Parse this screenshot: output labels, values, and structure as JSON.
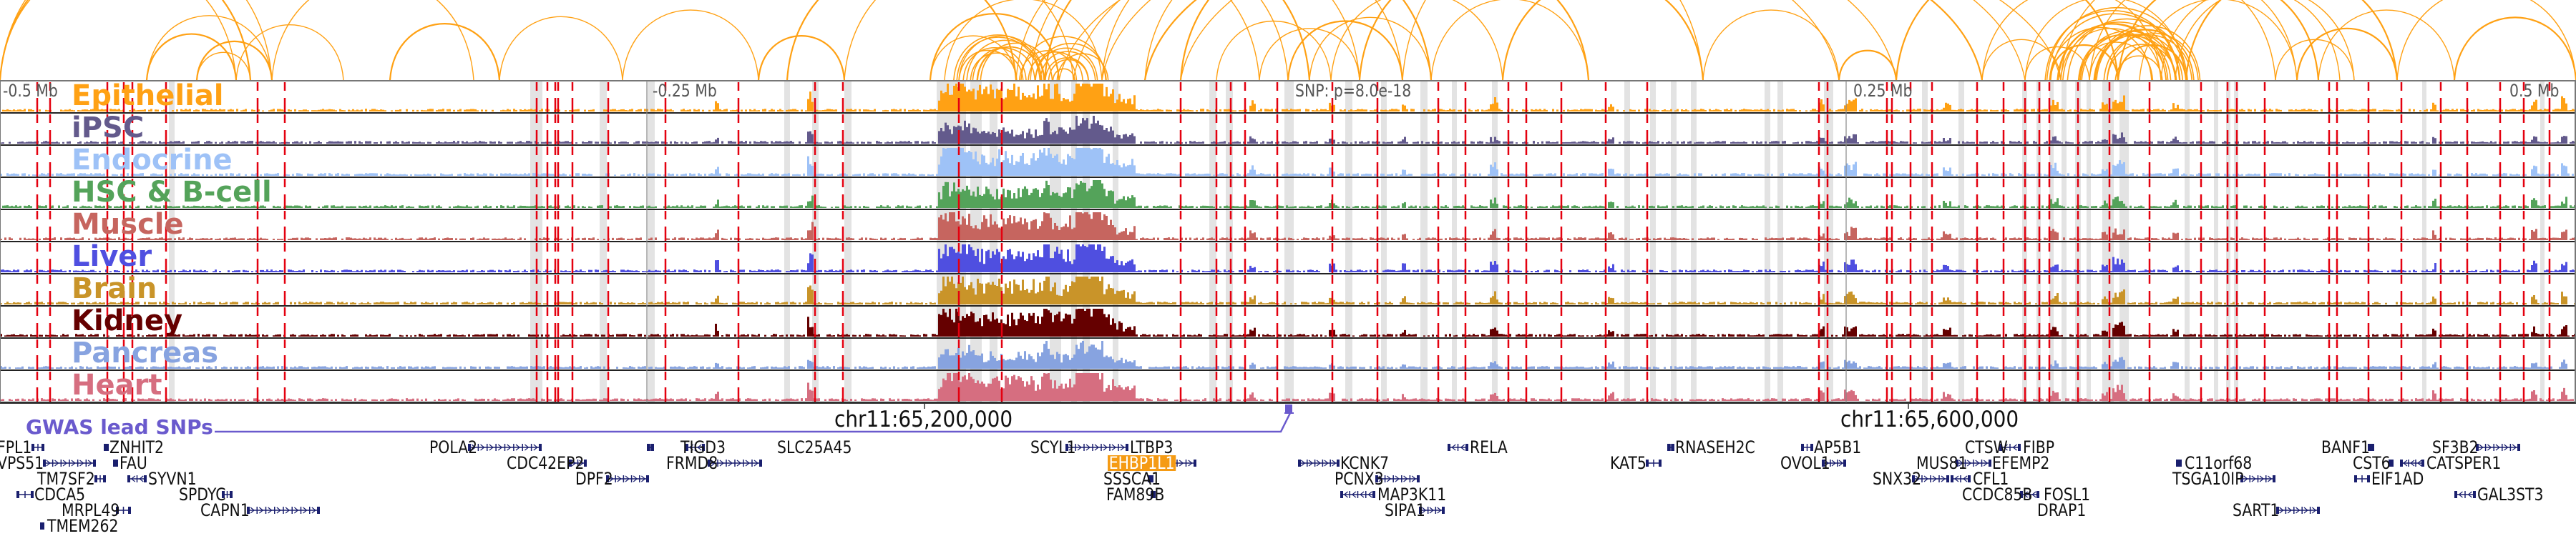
{
  "browser": {
    "title": "Genome browser region view",
    "arc_color": "#ffa114",
    "snp_marker_color": "#e4000f",
    "highlight_band_color": "#e3e3e3"
  },
  "axis": {
    "ticks": [
      {
        "label": "-0.5 Mb",
        "offset_mb": -0.5
      },
      {
        "label": "-0.25 Mb",
        "offset_mb": -0.25
      },
      {
        "label": "0.25 Mb",
        "offset_mb": 0.25
      },
      {
        "label": "0.5 Mb",
        "offset_mb": 0.5
      }
    ],
    "snp_label": "SNP: p=8.0e-18"
  },
  "tracks": [
    {
      "label": "Epithelial",
      "color": "#ffa114"
    },
    {
      "label": "iPSC",
      "color": "#635a8c"
    },
    {
      "label": "Endocrine",
      "color": "#9ec2f7"
    },
    {
      "label": "HSC & B-cell",
      "color": "#54a35a"
    },
    {
      "label": "Muscle",
      "color": "#c6655f"
    },
    {
      "label": "Liver",
      "color": "#4f4fe0"
    },
    {
      "label": "Brain",
      "color": "#c99429"
    },
    {
      "label": "Kidney",
      "color": "#650000"
    },
    {
      "label": "Pancreas",
      "color": "#87a3e0"
    },
    {
      "label": "Heart",
      "color": "#d66e80"
    }
  ],
  "coordinates": {
    "left": "chr11:65,200,000",
    "right": "chr11:65,600,000"
  },
  "gwas": {
    "label": "GWAS lead SNPs",
    "color": "#6a5acd"
  },
  "genes": [
    {
      "name": "FPL1",
      "highlight": false
    },
    {
      "name": "VPS51",
      "highlight": false
    },
    {
      "name": "TM7SF2",
      "highlight": false
    },
    {
      "name": "CDCA5",
      "highlight": false
    },
    {
      "name": "MRPL49",
      "highlight": false
    },
    {
      "name": "TMEM262",
      "highlight": false
    },
    {
      "name": "ZNHIT2",
      "highlight": false
    },
    {
      "name": "FAU",
      "highlight": false
    },
    {
      "name": "SYVN1",
      "highlight": false
    },
    {
      "name": "SPDYC",
      "highlight": false
    },
    {
      "name": "CAPN1",
      "highlight": false
    },
    {
      "name": "POLA2",
      "highlight": false
    },
    {
      "name": "CDC42EP2",
      "highlight": false
    },
    {
      "name": "DPF2",
      "highlight": false
    },
    {
      "name": "TIGD3",
      "highlight": false
    },
    {
      "name": "SLC25A45",
      "highlight": false
    },
    {
      "name": "FRMD8",
      "highlight": false
    },
    {
      "name": "SCYL1",
      "highlight": false
    },
    {
      "name": "LTBP3",
      "highlight": false
    },
    {
      "name": "EHBP1L1",
      "highlight": true
    },
    {
      "name": "SSSCA1",
      "highlight": false
    },
    {
      "name": "FAM89B",
      "highlight": false
    },
    {
      "name": "KCNK7",
      "highlight": false
    },
    {
      "name": "PCNX3",
      "highlight": false
    },
    {
      "name": "MAP3K11",
      "highlight": false
    },
    {
      "name": "SIPA1",
      "highlight": false
    },
    {
      "name": "RELA",
      "highlight": false
    },
    {
      "name": "KAT5",
      "highlight": false
    },
    {
      "name": "RNASEH2C",
      "highlight": false
    },
    {
      "name": "AP5B1",
      "highlight": false
    },
    {
      "name": "OVOL1",
      "highlight": false
    },
    {
      "name": "SNX32",
      "highlight": false
    },
    {
      "name": "MUS81",
      "highlight": false
    },
    {
      "name": "CTSW",
      "highlight": false
    },
    {
      "name": "FIBP",
      "highlight": false
    },
    {
      "name": "EFEMP2",
      "highlight": false
    },
    {
      "name": "CFL1",
      "highlight": false
    },
    {
      "name": "CCDC85B",
      "highlight": false
    },
    {
      "name": "FOSL1",
      "highlight": false
    },
    {
      "name": "DRAP1",
      "highlight": false
    },
    {
      "name": "C11orf68",
      "highlight": false
    },
    {
      "name": "TSGA10IP",
      "highlight": false
    },
    {
      "name": "SART1",
      "highlight": false
    },
    {
      "name": "BANF1",
      "highlight": false
    },
    {
      "name": "CST6",
      "highlight": false
    },
    {
      "name": "EIF1AD",
      "highlight": false
    },
    {
      "name": "SF3B2",
      "highlight": false
    },
    {
      "name": "CATSPER1",
      "highlight": false
    },
    {
      "name": "GAL3ST3",
      "highlight": false
    }
  ]
}
